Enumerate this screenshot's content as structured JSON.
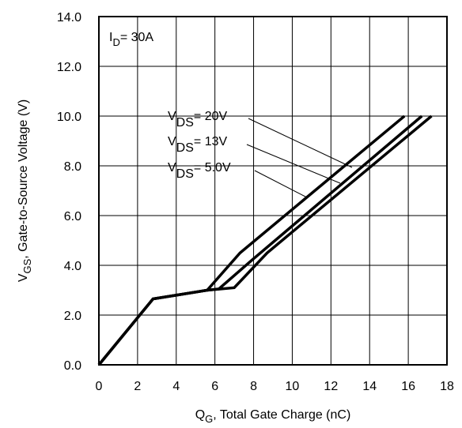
{
  "chart_data": {
    "type": "line",
    "xlabel": {
      "main": "Q",
      "sub": "G",
      "rest": ",  Total Gate Charge (nC)"
    },
    "ylabel": {
      "main": "V",
      "sub": "GS",
      "rest": ", Gate-to-Source Voltage (V)"
    },
    "xlim": [
      0,
      18
    ],
    "ylim": [
      0,
      14
    ],
    "x_ticks": [
      0,
      2,
      4,
      6,
      8,
      10,
      12,
      14,
      16,
      18
    ],
    "x_tick_labels": [
      "0",
      "2",
      "4",
      "6",
      "8",
      "10",
      "12",
      "14",
      "16",
      "18"
    ],
    "y_ticks": [
      0,
      2,
      4,
      6,
      8,
      10,
      12,
      14
    ],
    "y_tick_labels": [
      "0.0",
      "2.0",
      "4.0",
      "6.0",
      "8.0",
      "10.0",
      "12.0",
      "14.0"
    ],
    "grid": true,
    "condition": {
      "main": "I",
      "sub": "D",
      "rest": "= 30A"
    },
    "series": [
      {
        "label": {
          "main": "V",
          "sub": "DS",
          "rest": "= 20V"
        },
        "points": [
          [
            0,
            0
          ],
          [
            2.8,
            2.65
          ],
          [
            5.6,
            3.0
          ],
          [
            7.0,
            3.1
          ],
          [
            8.7,
            4.5
          ],
          [
            17.2,
            10.0
          ]
        ]
      },
      {
        "label": {
          "main": "V",
          "sub": "DS",
          "rest": "= 13V"
        },
        "points": [
          [
            0,
            0
          ],
          [
            2.8,
            2.65
          ],
          [
            5.6,
            3.0
          ],
          [
            6.2,
            3.05
          ],
          [
            7.9,
            4.2
          ],
          [
            16.7,
            10.0
          ]
        ]
      },
      {
        "label": {
          "main": "V",
          "sub": "DS",
          "rest": "= 5.0V"
        },
        "points": [
          [
            0,
            0
          ],
          [
            2.8,
            2.65
          ],
          [
            5.6,
            3.0
          ],
          [
            7.3,
            4.5
          ],
          [
            15.8,
            10.0
          ]
        ]
      }
    ]
  }
}
